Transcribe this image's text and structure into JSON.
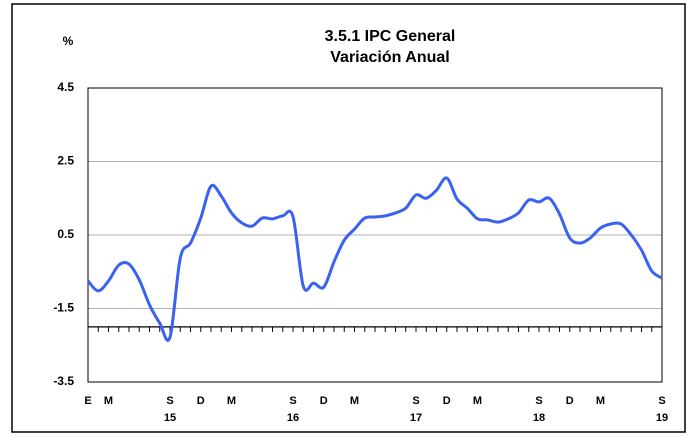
{
  "chart_data": {
    "type": "line",
    "title": [
      "3.5.1 IPC General",
      "Variación Anual"
    ],
    "ylabel": "%",
    "categories": [
      "E",
      null,
      "M",
      null,
      null,
      null,
      null,
      null,
      "S",
      null,
      null,
      "D",
      null,
      null,
      "M",
      null,
      null,
      null,
      null,
      null,
      "S",
      null,
      null,
      "D",
      null,
      null,
      "M",
      null,
      null,
      null,
      null,
      null,
      "S",
      null,
      null,
      "D",
      null,
      null,
      "M",
      null,
      null,
      null,
      null,
      null,
      "S",
      null,
      null,
      "D",
      null,
      null,
      "M",
      null,
      null,
      null,
      null,
      null,
      "S"
    ],
    "year_labels": [
      null,
      null,
      null,
      null,
      null,
      null,
      null,
      null,
      "15",
      null,
      null,
      null,
      null,
      null,
      null,
      null,
      null,
      null,
      null,
      null,
      "16",
      null,
      null,
      null,
      null,
      null,
      null,
      null,
      null,
      null,
      null,
      null,
      "17",
      null,
      null,
      null,
      null,
      null,
      null,
      null,
      null,
      null,
      null,
      null,
      "18",
      null,
      null,
      null,
      null,
      null,
      null,
      null,
      null,
      null,
      null,
      null,
      "19"
    ],
    "series": [
      {
        "name": "IPC General",
        "color": "#3a62f0",
        "values": [
          -0.75,
          -1.02,
          -0.75,
          -0.32,
          -0.29,
          -0.72,
          -1.4,
          -1.9,
          -2.28,
          -0.13,
          0.28,
          0.96,
          1.83,
          1.56,
          1.1,
          0.83,
          0.74,
          0.96,
          0.94,
          1.02,
          1.0,
          -0.89,
          -0.81,
          -0.92,
          -0.23,
          0.36,
          0.66,
          0.96,
          0.99,
          1.02,
          1.1,
          1.23,
          1.59,
          1.5,
          1.72,
          2.05,
          1.48,
          1.23,
          0.94,
          0.91,
          0.85,
          0.94,
          1.1,
          1.45,
          1.4,
          1.5,
          1.07,
          0.42,
          0.28,
          0.42,
          0.69,
          0.8,
          0.8,
          0.5,
          0.09,
          -0.48,
          -0.67
        ]
      }
    ],
    "ylim": [
      -3.5,
      4.5
    ],
    "yticks": [
      4.5,
      2.5,
      0.5,
      -1.5,
      -3.5
    ],
    "grid": true,
    "x_axis_at": -2
  }
}
